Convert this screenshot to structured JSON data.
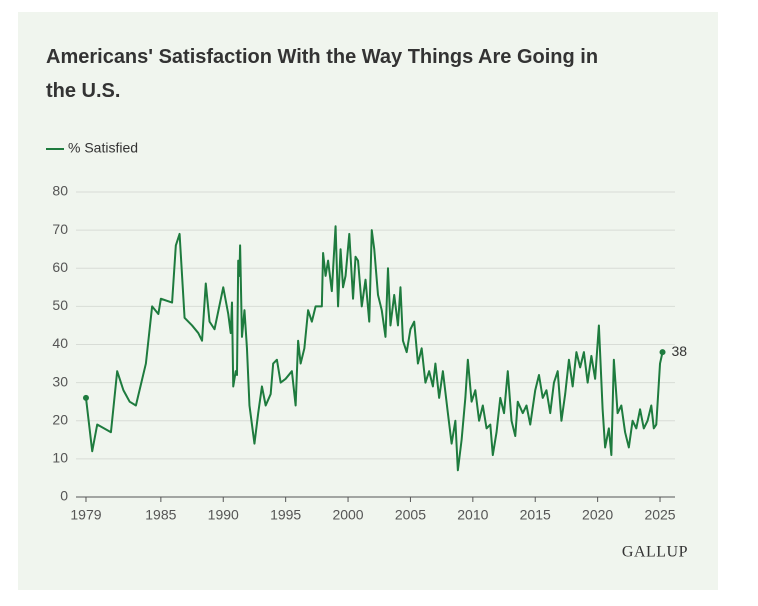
{
  "chart_data": {
    "type": "line",
    "title": "Americans' Satisfaction With the Way Things Are Going in the U.S.",
    "source": "GALLUP",
    "x": [
      1979.0,
      1979.5,
      1979.9,
      1981.0,
      1981.5,
      1982.0,
      1982.5,
      1983.0,
      1983.8,
      1984.3,
      1984.8,
      1985.0,
      1985.9,
      1986.2,
      1986.5,
      1986.9,
      1987.5,
      1988.0,
      1988.3,
      1988.6,
      1988.9,
      1989.3,
      1990.0,
      1990.4,
      1990.6,
      1990.7,
      1990.8,
      1991.0,
      1991.1,
      1991.2,
      1991.3,
      1991.35,
      1991.5,
      1991.7,
      1991.9,
      1992.1,
      1992.3,
      1992.5,
      1992.8,
      1993.1,
      1993.4,
      1993.8,
      1994.0,
      1994.3,
      1994.6,
      1995.0,
      1995.5,
      1995.8,
      1996.0,
      1996.2,
      1996.5,
      1996.8,
      1997.1,
      1997.4,
      1997.9,
      1998.0,
      1998.2,
      1998.4,
      1998.7,
      1999.0,
      1999.2,
      1999.4,
      1999.6,
      1999.8,
      2000.1,
      2000.4,
      2000.6,
      2000.8,
      2001.1,
      2001.4,
      2001.7,
      2001.9,
      2002.1,
      2002.4,
      2002.7,
      2003.0,
      2003.2,
      2003.4,
      2003.7,
      2004.0,
      2004.2,
      2004.4,
      2004.7,
      2005.0,
      2005.3,
      2005.6,
      2005.9,
      2006.2,
      2006.5,
      2006.8,
      2007.0,
      2007.3,
      2007.6,
      2008.0,
      2008.3,
      2008.6,
      2008.8,
      2009.1,
      2009.4,
      2009.6,
      2009.9,
      2010.2,
      2010.5,
      2010.8,
      2011.1,
      2011.4,
      2011.6,
      2011.9,
      2012.2,
      2012.5,
      2012.8,
      2013.1,
      2013.4,
      2013.6,
      2014.0,
      2014.3,
      2014.6,
      2015.0,
      2015.3,
      2015.6,
      2015.9,
      2016.2,
      2016.5,
      2016.8,
      2017.1,
      2017.4,
      2017.7,
      2018.0,
      2018.3,
      2018.6,
      2018.9,
      2019.2,
      2019.5,
      2019.8,
      2020.1,
      2020.4,
      2020.6,
      2020.9,
      2021.1,
      2021.3,
      2021.6,
      2021.9,
      2022.2,
      2022.5,
      2022.8,
      2023.1,
      2023.4,
      2023.7,
      2024.0,
      2024.3,
      2024.5,
      2024.7,
      2025.0,
      2025.2
    ],
    "series": [
      {
        "name": "% Satisfied",
        "color": "#1e7b3e",
        "end_label": "38",
        "values": [
          26,
          12,
          19,
          17,
          33,
          28,
          25,
          24,
          35,
          50,
          48,
          52,
          51,
          66,
          69,
          47,
          45,
          43,
          41,
          56,
          46,
          44,
          55,
          48,
          43,
          51,
          29,
          33,
          32,
          62,
          58,
          66,
          42,
          49,
          39,
          24,
          19,
          14,
          22,
          29,
          24,
          27,
          35,
          36,
          30,
          31,
          33,
          24,
          41,
          35,
          39,
          49,
          46,
          50,
          50,
          64,
          58,
          62,
          54,
          71,
          50,
          65,
          55,
          58,
          69,
          52,
          63,
          62,
          50,
          57,
          46,
          70,
          65,
          53,
          49,
          42,
          60,
          45,
          53,
          45,
          55,
          41,
          38,
          44,
          46,
          35,
          39,
          30,
          33,
          29,
          35,
          26,
          33,
          22,
          14,
          20,
          7,
          15,
          26,
          36,
          25,
          28,
          20,
          24,
          18,
          19,
          11,
          17,
          26,
          22,
          33,
          20,
          16,
          25,
          22,
          24,
          19,
          28,
          32,
          26,
          28,
          22,
          30,
          33,
          20,
          27,
          36,
          29,
          38,
          34,
          38,
          30,
          37,
          31,
          45,
          23,
          13,
          18,
          11,
          36,
          22,
          24,
          17,
          13,
          20,
          18,
          23,
          18,
          20,
          24,
          18,
          19,
          35,
          38
        ]
      }
    ],
    "xlim": [
      1978.2,
      2026.2
    ],
    "xticks": [
      1979,
      1985,
      1990,
      1995,
      2000,
      2005,
      2010,
      2015,
      2020,
      2025
    ],
    "ylim": [
      0,
      80
    ],
    "yticks": [
      0,
      10,
      20,
      30,
      40,
      50,
      60,
      70,
      80
    ],
    "grid": true
  }
}
